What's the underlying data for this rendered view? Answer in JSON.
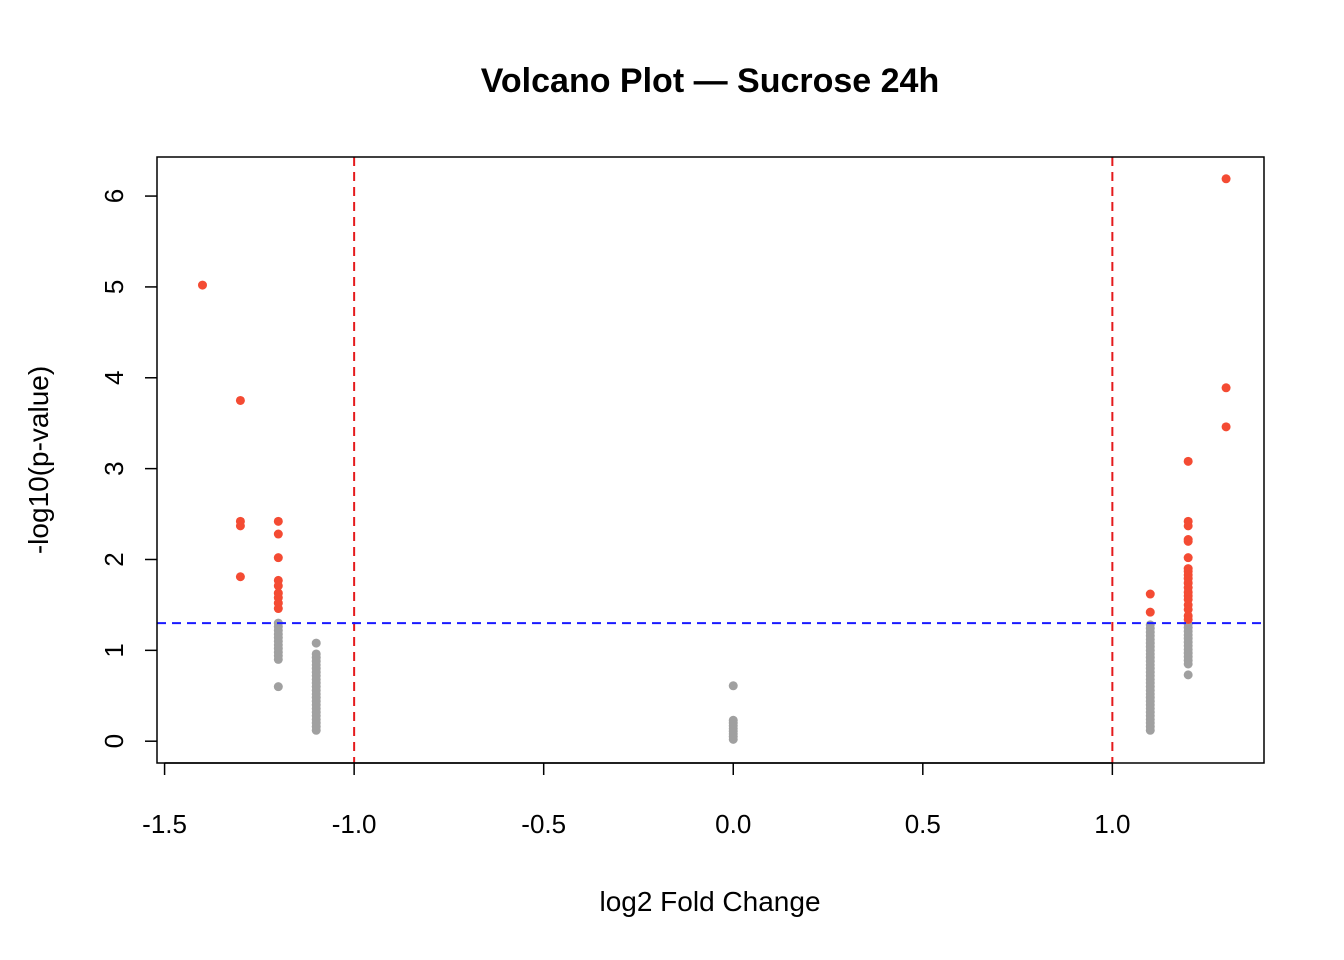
{
  "chart_data": {
    "type": "scatter",
    "title": "Volcano Plot — Sucrose 24h",
    "xlabel": "log2 Fold Change",
    "ylabel": "-log10(p-value)",
    "xlim": [
      -1.52,
      1.4
    ],
    "ylim": [
      -0.24,
      6.43
    ],
    "x_ticks": [
      -1.5,
      -1.0,
      -0.5,
      0.0,
      0.5,
      1.0
    ],
    "x_tick_labels": [
      "-1.5",
      "-1.0",
      "-0.5",
      "0.0",
      "0.5",
      "1.0"
    ],
    "y_ticks": [
      0,
      1,
      2,
      3,
      4,
      5,
      6
    ],
    "y_tick_labels": [
      "0",
      "1",
      "2",
      "3",
      "4",
      "5",
      "6"
    ],
    "grid": false,
    "reference_lines": {
      "vertical": [
        -1.0,
        1.0
      ],
      "vertical_color": "#e41a1c",
      "horizontal": [
        1.3
      ],
      "horizontal_color": "#1a1aff"
    },
    "colors": {
      "significant": "#f44b33",
      "not_significant": "#a0a0a0"
    },
    "significant_points": [
      [
        -1.4,
        5.02
      ],
      [
        -1.3,
        3.75
      ],
      [
        -1.3,
        2.42
      ],
      [
        -1.3,
        2.37
      ],
      [
        -1.3,
        1.81
      ],
      [
        -1.2,
        2.42
      ],
      [
        -1.2,
        2.28
      ],
      [
        -1.2,
        2.02
      ],
      [
        -1.2,
        1.77
      ],
      [
        -1.2,
        1.71
      ],
      [
        -1.2,
        1.63
      ],
      [
        -1.2,
        1.58
      ],
      [
        -1.2,
        1.52
      ],
      [
        -1.2,
        1.46
      ],
      [
        1.1,
        1.62
      ],
      [
        1.1,
        1.42
      ],
      [
        1.2,
        3.08
      ],
      [
        1.2,
        2.42
      ],
      [
        1.2,
        2.37
      ],
      [
        1.2,
        2.22
      ],
      [
        1.2,
        2.2
      ],
      [
        1.2,
        2.02
      ],
      [
        1.2,
        1.9
      ],
      [
        1.2,
        1.87
      ],
      [
        1.2,
        1.83
      ],
      [
        1.2,
        1.79
      ],
      [
        1.2,
        1.74
      ],
      [
        1.2,
        1.69
      ],
      [
        1.2,
        1.64
      ],
      [
        1.2,
        1.6
      ],
      [
        1.2,
        1.56
      ],
      [
        1.2,
        1.5
      ],
      [
        1.2,
        1.45
      ],
      [
        1.2,
        1.38
      ],
      [
        1.2,
        1.34
      ],
      [
        1.3,
        6.19
      ],
      [
        1.3,
        3.89
      ],
      [
        1.3,
        3.46
      ]
    ],
    "nonsignificant_points": [
      [
        -1.2,
        1.3
      ],
      [
        -1.2,
        1.26
      ],
      [
        -1.2,
        1.22
      ],
      [
        -1.2,
        1.18
      ],
      [
        -1.2,
        1.14
      ],
      [
        -1.2,
        1.1
      ],
      [
        -1.2,
        1.06
      ],
      [
        -1.2,
        1.02
      ],
      [
        -1.2,
        0.98
      ],
      [
        -1.2,
        0.94
      ],
      [
        -1.2,
        0.9
      ],
      [
        -1.2,
        0.6
      ],
      [
        -1.1,
        1.08
      ],
      [
        -1.1,
        0.96
      ],
      [
        -1.1,
        0.92
      ],
      [
        -1.1,
        0.88
      ],
      [
        -1.1,
        0.84
      ],
      [
        -1.1,
        0.8
      ],
      [
        -1.1,
        0.76
      ],
      [
        -1.1,
        0.72
      ],
      [
        -1.1,
        0.68
      ],
      [
        -1.1,
        0.64
      ],
      [
        -1.1,
        0.6
      ],
      [
        -1.1,
        0.56
      ],
      [
        -1.1,
        0.52
      ],
      [
        -1.1,
        0.48
      ],
      [
        -1.1,
        0.44
      ],
      [
        -1.1,
        0.4
      ],
      [
        -1.1,
        0.36
      ],
      [
        -1.1,
        0.32
      ],
      [
        -1.1,
        0.28
      ],
      [
        -1.1,
        0.24
      ],
      [
        -1.1,
        0.2
      ],
      [
        -1.1,
        0.16
      ],
      [
        -1.1,
        0.12
      ],
      [
        0.0,
        0.61
      ],
      [
        0.0,
        0.23
      ],
      [
        0.0,
        0.2
      ],
      [
        0.0,
        0.17
      ],
      [
        0.0,
        0.14
      ],
      [
        0.0,
        0.11
      ],
      [
        0.0,
        0.08
      ],
      [
        0.0,
        0.05
      ],
      [
        0.0,
        0.02
      ],
      [
        1.1,
        1.28
      ],
      [
        1.1,
        1.24
      ],
      [
        1.1,
        1.2
      ],
      [
        1.1,
        1.16
      ],
      [
        1.1,
        1.12
      ],
      [
        1.1,
        1.08
      ],
      [
        1.1,
        1.04
      ],
      [
        1.1,
        1.0
      ],
      [
        1.1,
        0.96
      ],
      [
        1.1,
        0.92
      ],
      [
        1.1,
        0.88
      ],
      [
        1.1,
        0.84
      ],
      [
        1.1,
        0.8
      ],
      [
        1.1,
        0.76
      ],
      [
        1.1,
        0.72
      ],
      [
        1.1,
        0.68
      ],
      [
        1.1,
        0.64
      ],
      [
        1.1,
        0.6
      ],
      [
        1.1,
        0.56
      ],
      [
        1.1,
        0.52
      ],
      [
        1.1,
        0.48
      ],
      [
        1.1,
        0.44
      ],
      [
        1.1,
        0.4
      ],
      [
        1.1,
        0.36
      ],
      [
        1.1,
        0.32
      ],
      [
        1.1,
        0.28
      ],
      [
        1.1,
        0.24
      ],
      [
        1.1,
        0.2
      ],
      [
        1.1,
        0.16
      ],
      [
        1.1,
        0.12
      ],
      [
        1.2,
        1.29
      ],
      [
        1.2,
        1.25
      ],
      [
        1.2,
        1.21
      ],
      [
        1.2,
        1.17
      ],
      [
        1.2,
        1.13
      ],
      [
        1.2,
        1.09
      ],
      [
        1.2,
        1.05
      ],
      [
        1.2,
        1.01
      ],
      [
        1.2,
        0.97
      ],
      [
        1.2,
        0.93
      ],
      [
        1.2,
        0.89
      ],
      [
        1.2,
        0.85
      ],
      [
        1.2,
        0.73
      ]
    ]
  }
}
